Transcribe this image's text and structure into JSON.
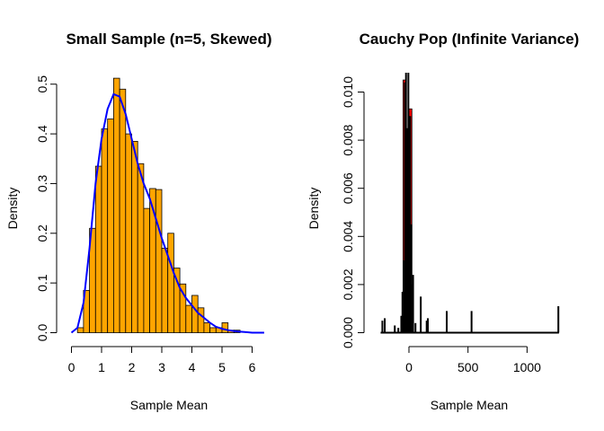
{
  "chart_data": [
    {
      "type": "bar",
      "title": "Small Sample (n=5, Skewed)",
      "xlabel": "Sample Mean",
      "ylabel": "Density",
      "xlim": [
        0,
        6.4
      ],
      "ylim": [
        0,
        0.5
      ],
      "x_ticks": [
        "0",
        "1",
        "2",
        "3",
        "4",
        "5",
        "6"
      ],
      "y_ticks": [
        "0.0",
        "0.1",
        "0.2",
        "0.3",
        "0.4",
        "0.5"
      ],
      "bar_color": "#FFA500",
      "bar_width": 0.2,
      "bin_starts": [
        0.2,
        0.4,
        0.6,
        0.8,
        1.0,
        1.2,
        1.4,
        1.6,
        1.8,
        2.0,
        2.2,
        2.4,
        2.6,
        2.8,
        3.0,
        3.2,
        3.4,
        3.6,
        3.8,
        4.0,
        4.2,
        4.4,
        4.6,
        4.8,
        5.0,
        5.2,
        5.4
      ],
      "values": [
        0.01,
        0.085,
        0.21,
        0.335,
        0.41,
        0.43,
        0.512,
        0.49,
        0.4,
        0.385,
        0.34,
        0.25,
        0.29,
        0.288,
        0.17,
        0.2,
        0.13,
        0.098,
        0.055,
        0.075,
        0.05,
        0.02,
        0.01,
        0.01,
        0.02,
        0.005,
        0.005
      ],
      "density_curve": {
        "color": "#0000FF",
        "x": [
          0.0,
          0.2,
          0.4,
          0.6,
          0.8,
          1.0,
          1.2,
          1.4,
          1.6,
          1.8,
          2.0,
          2.2,
          2.4,
          2.6,
          2.8,
          3.0,
          3.2,
          3.4,
          3.6,
          3.8,
          4.0,
          4.2,
          4.4,
          4.6,
          4.8,
          5.0,
          5.2,
          5.4,
          5.6,
          5.8,
          6.0,
          6.2,
          6.4
        ],
        "y": [
          0.0,
          0.01,
          0.06,
          0.17,
          0.3,
          0.39,
          0.45,
          0.48,
          0.475,
          0.44,
          0.39,
          0.34,
          0.3,
          0.27,
          0.23,
          0.19,
          0.155,
          0.12,
          0.09,
          0.07,
          0.055,
          0.04,
          0.03,
          0.02,
          0.012,
          0.008,
          0.005,
          0.003,
          0.002,
          0.001,
          0.0,
          0.0,
          0.0
        ]
      }
    },
    {
      "type": "bar",
      "title": "Cauchy Pop (Infinite Variance)",
      "xlabel": "Sample Mean",
      "ylabel": "Density",
      "xlim": [
        -290,
        1290
      ],
      "ylim": [
        0,
        0.0108
      ],
      "x_ticks": [
        "0",
        "500",
        "1000"
      ],
      "y_ticks": [
        "0.000",
        "0.002",
        "0.004",
        "0.006",
        "0.008",
        "0.010"
      ],
      "bars": {
        "color": "#FF0000",
        "items": [
          {
            "x0": -50,
            "x1": -25,
            "value": 0.0105
          },
          {
            "x0": 0,
            "x1": 25,
            "value": 0.0093
          }
        ]
      },
      "spikes": {
        "color": "#000000",
        "items": [
          {
            "x": -225,
            "value": 0.0005
          },
          {
            "x": -205,
            "value": 0.0006
          },
          {
            "x": -120,
            "value": 0.0003
          },
          {
            "x": -90,
            "value": 0.0002
          },
          {
            "x": -65,
            "value": 0.0007
          },
          {
            "x": -55,
            "value": 0.0017
          },
          {
            "x": -45,
            "value": 0.003
          },
          {
            "x": -35,
            "value": 0.0104
          },
          {
            "x": -25,
            "value": 0.0108
          },
          {
            "x": -18,
            "value": 0.0085
          },
          {
            "x": -12,
            "value": 0.007
          },
          {
            "x": -5,
            "value": 0.0108
          },
          {
            "x": 0,
            "value": 0.006
          },
          {
            "x": 5,
            "value": 0.003
          },
          {
            "x": 10,
            "value": 0.009
          },
          {
            "x": 20,
            "value": 0.0045
          },
          {
            "x": 25,
            "value": 0.002
          },
          {
            "x": 35,
            "value": 0.0024
          },
          {
            "x": 55,
            "value": 0.0004
          },
          {
            "x": 100,
            "value": 0.0015
          },
          {
            "x": 150,
            "value": 0.0005
          },
          {
            "x": 160,
            "value": 0.0006
          },
          {
            "x": 320,
            "value": 0.0009
          },
          {
            "x": 530,
            "value": 0.0009
          },
          {
            "x": 1265,
            "value": 0.0011
          }
        ]
      },
      "baseline": {
        "x0": -240,
        "x1": 1270
      }
    }
  ]
}
